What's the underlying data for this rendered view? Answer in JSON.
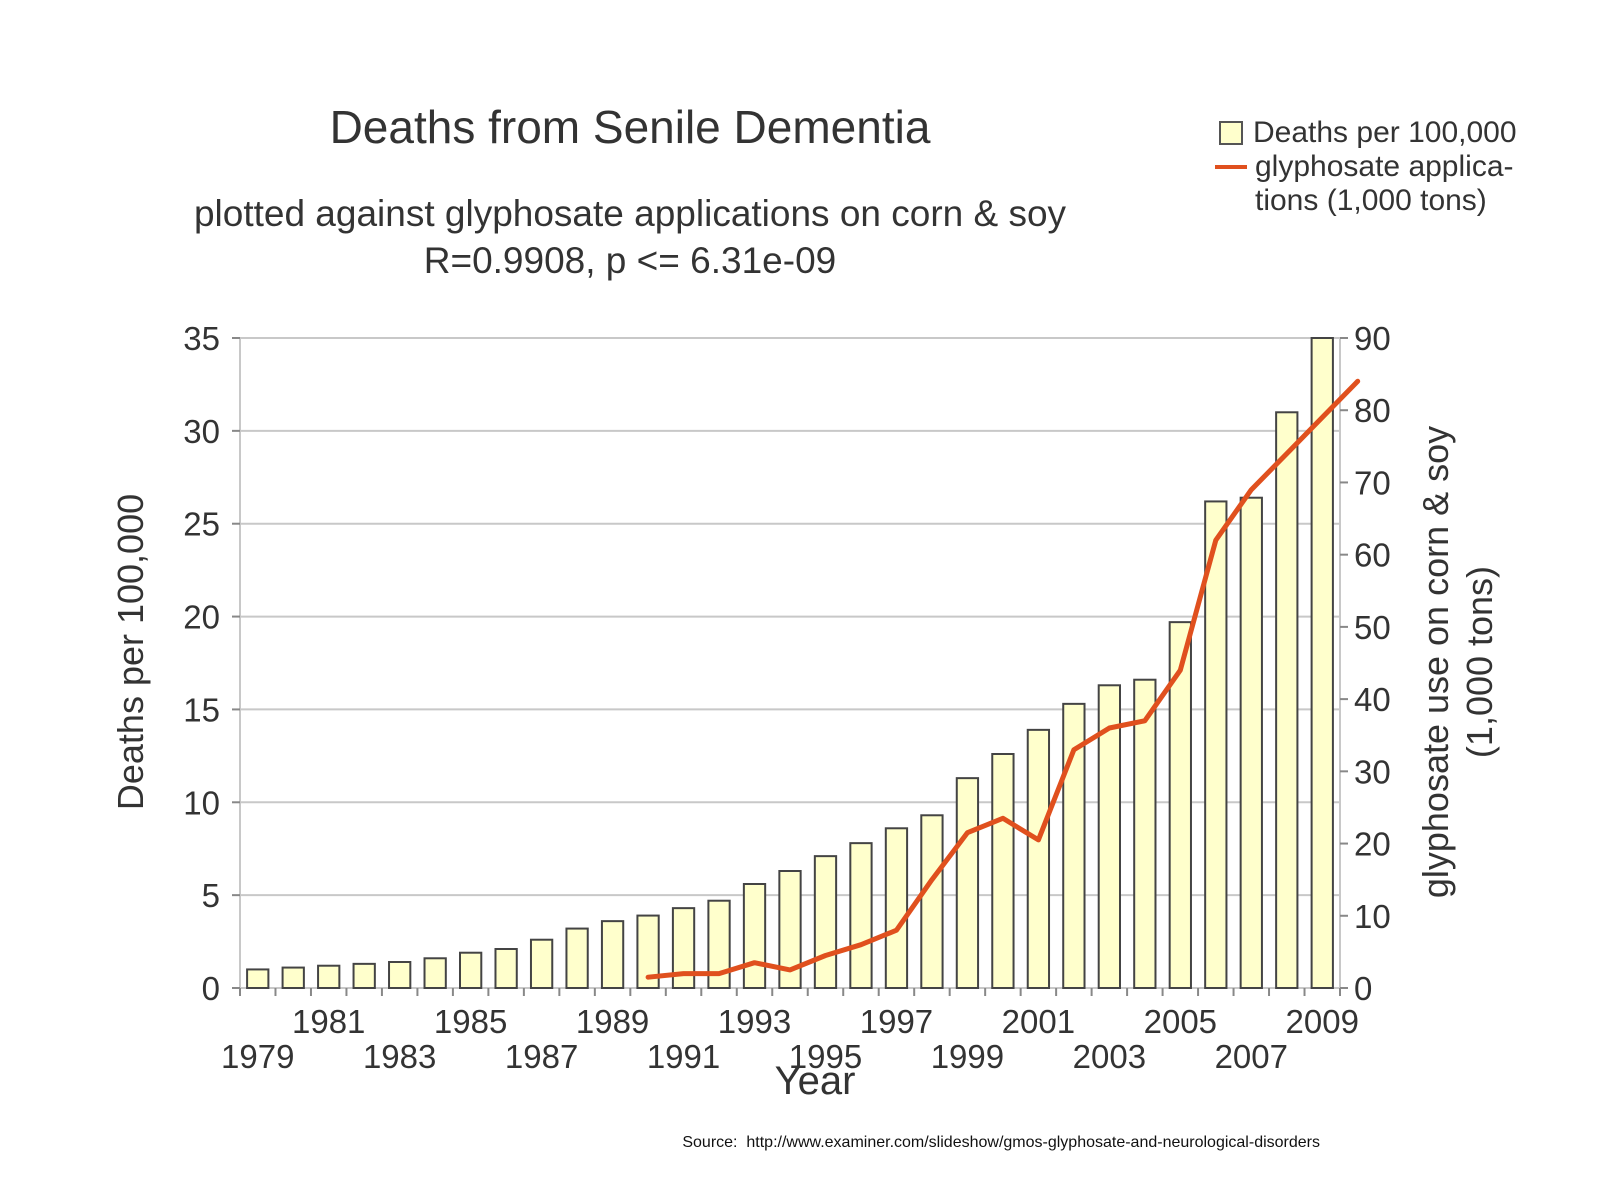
{
  "chart_data": {
    "type": "bar",
    "title": "Deaths from Senile Dementia",
    "subtitle": "plotted against glyphosate applications on corn & soy",
    "annotation": "R=0.9908, p <= 6.31e-09",
    "xlabel": "Year",
    "ylabel": "Deaths per 100,000",
    "y2label_line1": "glyphosate use on corn & soy",
    "y2label_line2": "(1,000 tons)",
    "ylim": [
      0,
      35
    ],
    "y2lim": [
      0,
      90
    ],
    "yticks": [
      "0",
      "5",
      "10",
      "15",
      "20",
      "25",
      "30",
      "35"
    ],
    "y2ticks": [
      "0",
      "10",
      "20",
      "30",
      "40",
      "50",
      "60",
      "70",
      "80",
      "90"
    ],
    "categories": [
      "1979",
      "1980",
      "1981",
      "1982",
      "1983",
      "1984",
      "1985",
      "1986",
      "1987",
      "1988",
      "1989",
      "1990",
      "1991",
      "1992",
      "1993",
      "1994",
      "1995",
      "1996",
      "1997",
      "1998",
      "1999",
      "2000",
      "2001",
      "2002",
      "2003",
      "2004",
      "2005",
      "2006",
      "2007",
      "2008",
      "2009"
    ],
    "xtick_labels": [
      "1979",
      "",
      "1981",
      "",
      "1983",
      "",
      "1985",
      "",
      "1987",
      "",
      "1989",
      "",
      "1991",
      "",
      "1993",
      "",
      "1995",
      "",
      "1997",
      "",
      "1999",
      "",
      "2001",
      "",
      "2003",
      "",
      "2005",
      "",
      "2007",
      "",
      "2009"
    ],
    "grid": true,
    "legend_position": "top-right",
    "series": [
      {
        "name": "Deaths per 100,000",
        "type": "bar",
        "axis": "left",
        "color": "#ffffcc",
        "values": [
          1.0,
          1.1,
          1.2,
          1.3,
          1.4,
          1.6,
          1.9,
          2.1,
          2.6,
          3.2,
          3.6,
          3.9,
          4.3,
          4.7,
          5.6,
          6.3,
          7.1,
          7.8,
          8.6,
          9.3,
          11.3,
          12.6,
          13.9,
          15.3,
          16.3,
          16.6,
          19.7,
          26.2,
          26.4,
          31.0,
          35.0
        ]
      },
      {
        "name": "glyphosate applica-\ntions (1,000 tons)",
        "type": "line",
        "axis": "right",
        "color": "#e0501e",
        "x": [
          "1990",
          "1991",
          "1992",
          "1993",
          "1994",
          "1995",
          "1996",
          "1997",
          "1998",
          "1999",
          "2000",
          "2001",
          "2002",
          "2003",
          "2004",
          "2005",
          "2006",
          "2007",
          "2008",
          "2009",
          "2010"
        ],
        "values": [
          1.5,
          2.0,
          2.0,
          3.5,
          2.5,
          4.5,
          6.0,
          8.0,
          15.0,
          21.5,
          23.5,
          20.5,
          33.0,
          36.0,
          37.0,
          44.0,
          62.0,
          69.0,
          74.0,
          79.0,
          84.0
        ]
      }
    ]
  },
  "source": "Source:  http://www.examiner.com/slideshow/gmos-glyphosate-and-neurological-disorders"
}
